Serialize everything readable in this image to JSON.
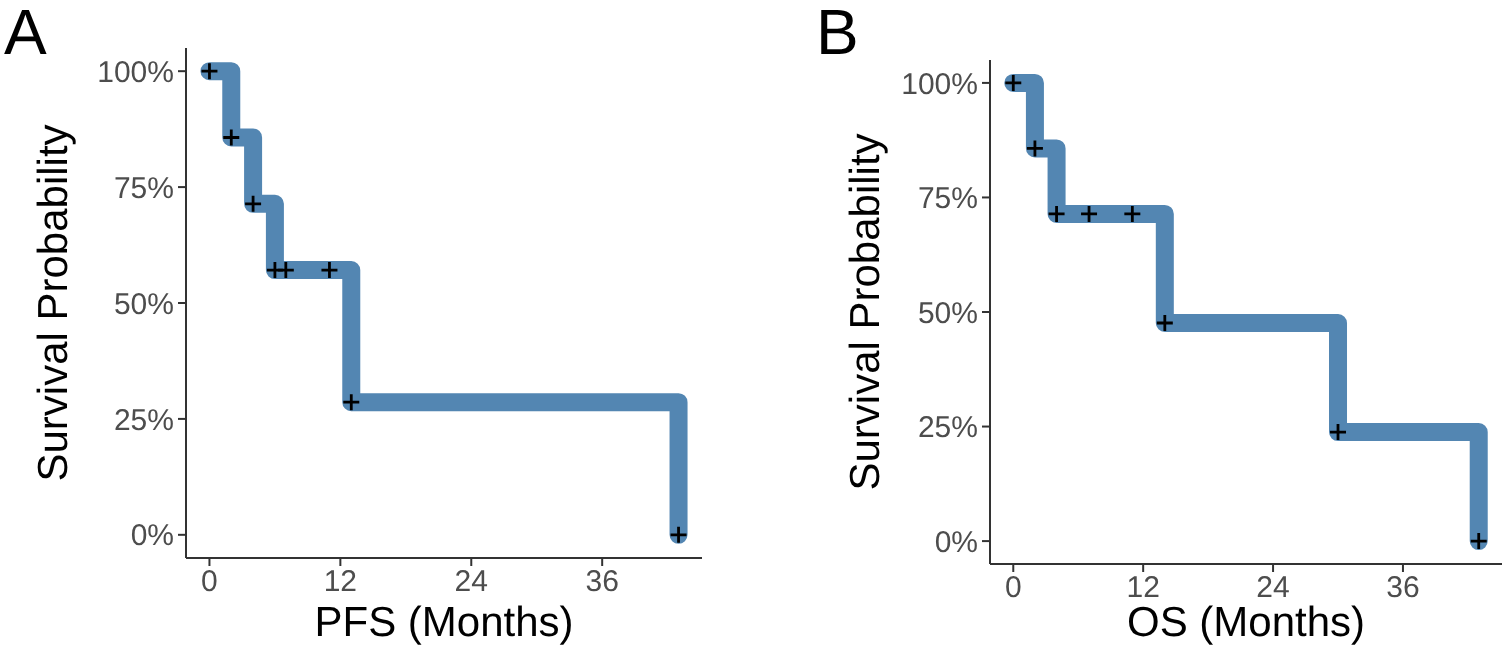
{
  "chart_data": [
    {
      "type": "step",
      "title": "A",
      "xlabel": "PFS (Months)",
      "ylabel": "Survival Probability",
      "xlim": [
        -2.15,
        45.15
      ],
      "xticks": [
        0,
        12,
        24,
        36
      ],
      "ylim": [
        -5,
        105
      ],
      "yticks": [
        {
          "value": 0,
          "label": "0%"
        },
        {
          "value": 25,
          "label": "25%"
        },
        {
          "value": 50,
          "label": "50%"
        },
        {
          "value": 75,
          "label": "75%"
        },
        {
          "value": 100,
          "label": "100%"
        }
      ],
      "grid": false,
      "series": [
        {
          "color": "#4a7fae",
          "marker": "none",
          "x": [
            0,
            2,
            4,
            6,
            13,
            43
          ],
          "values": [
            100,
            85.7,
            71.4,
            57.1,
            28.6,
            0
          ]
        },
        {
          "type": "scatter",
          "marker": "cross",
          "color": "#000000",
          "x": [
            0,
            2,
            4,
            6,
            7,
            11,
            13,
            43
          ],
          "values": [
            100,
            85.7,
            71.4,
            57.1,
            57.1,
            57.1,
            28.6,
            0
          ]
        }
      ]
    },
    {
      "type": "step",
      "title": "B",
      "xlabel": "OS (Months)",
      "ylabel": "Survival Probability",
      "xlim": [
        -2.15,
        45.15
      ],
      "xticks": [
        0,
        12,
        24,
        36
      ],
      "ylim": [
        -5,
        105
      ],
      "yticks": [
        {
          "value": 0,
          "label": "0%"
        },
        {
          "value": 25,
          "label": "25%"
        },
        {
          "value": 50,
          "label": "50%"
        },
        {
          "value": 75,
          "label": "75%"
        },
        {
          "value": 100,
          "label": "100%"
        }
      ],
      "grid": false,
      "series": [
        {
          "color": "#4a7fae",
          "marker": "none",
          "x": [
            0,
            2,
            4,
            14,
            30,
            43
          ],
          "values": [
            100,
            85.7,
            71.4,
            47.6,
            23.8,
            0
          ]
        },
        {
          "type": "scatter",
          "marker": "cross",
          "color": "#000000",
          "x": [
            0,
            2,
            4,
            7,
            11,
            14,
            30,
            43
          ],
          "values": [
            100,
            85.7,
            71.4,
            71.4,
            71.4,
            47.6,
            23.8,
            0
          ]
        }
      ]
    }
  ]
}
